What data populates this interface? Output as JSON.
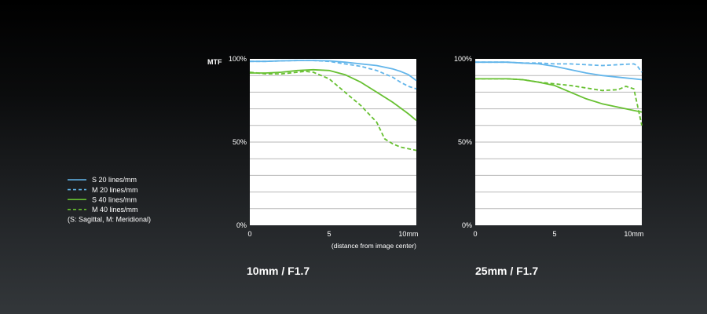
{
  "colors": {
    "sagittal_20": "#62b5ea",
    "meridional_20": "#62b5ea",
    "sagittal_40": "#67c031",
    "meridional_40": "#67c031",
    "plot_background": "#ffffff",
    "gridline": "#b7b7b7"
  },
  "legend": {
    "items": [
      {
        "label": "S 20 lines/mm",
        "style": "solid",
        "color": "#62b5ea"
      },
      {
        "label": "M 20 lines/mm",
        "style": "dashed",
        "color": "#62b5ea"
      },
      {
        "label": "S 40 lines/mm",
        "style": "solid",
        "color": "#67c031"
      },
      {
        "label": "M 40 lines/mm",
        "style": "dashed",
        "color": "#67c031"
      }
    ],
    "note": "(S: Sagittal, M: Meridional)",
    "placement": "left"
  },
  "chart_data": [
    {
      "type": "line",
      "ylabel": "MTF",
      "xlabel": "(distance from image center)",
      "caption": "10mm / F1.7",
      "ylim": [
        0,
        100
      ],
      "xlim": [
        0,
        10.5
      ],
      "y_ticks": [
        {
          "value": 0,
          "label": "0%"
        },
        {
          "value": 50,
          "label": "50%"
        },
        {
          "value": 100,
          "label": "100%"
        }
      ],
      "x_ticks": [
        {
          "value": 0,
          "label": "0"
        },
        {
          "value": 5,
          "label": "5"
        },
        {
          "value": 10,
          "label": "10mm"
        }
      ],
      "grid": true,
      "gridline_step": 10,
      "series": [
        {
          "name": "S 20 lines/mm",
          "style": "solid",
          "color": "#62b5ea",
          "x": [
            0,
            1,
            2,
            3,
            4,
            5,
            6,
            7,
            8,
            9,
            9.5,
            10,
            10.5
          ],
          "y": [
            98.5,
            98.5,
            98.8,
            99,
            99,
            98.8,
            98,
            97,
            96,
            94,
            92.5,
            90.5,
            87
          ]
        },
        {
          "name": "M 20 lines/mm",
          "style": "dashed",
          "color": "#62b5ea",
          "x": [
            0,
            1,
            2,
            3,
            4,
            5,
            6,
            7,
            8,
            9,
            9.5,
            10,
            10.5
          ],
          "y": [
            98.5,
            98.5,
            98.8,
            99,
            99,
            98.5,
            97,
            95.5,
            93,
            89,
            86,
            83.5,
            82
          ]
        },
        {
          "name": "S 40 lines/mm",
          "style": "solid",
          "color": "#67c031",
          "x": [
            0,
            1,
            2,
            3,
            4,
            5,
            6,
            7,
            8,
            9,
            9.5,
            10,
            10.5
          ],
          "y": [
            91.5,
            91.5,
            92,
            93,
            93.5,
            93,
            90.5,
            86,
            80,
            74,
            70.5,
            67,
            63
          ]
        },
        {
          "name": "M 40 lines/mm",
          "style": "dashed",
          "color": "#67c031",
          "x": [
            0,
            1,
            2,
            3,
            3.5,
            4,
            5,
            6,
            7,
            8,
            8.5,
            9,
            9.5,
            10,
            10.5
          ],
          "y": [
            92,
            91,
            91,
            92,
            92.5,
            92,
            88,
            80,
            72,
            62,
            52,
            49,
            47,
            46,
            45
          ]
        }
      ]
    },
    {
      "type": "line",
      "ylabel": "",
      "xlabel": "",
      "caption": "25mm / F1.7",
      "ylim": [
        0,
        100
      ],
      "xlim": [
        0,
        10.5
      ],
      "y_ticks": [
        {
          "value": 0,
          "label": "0%"
        },
        {
          "value": 50,
          "label": "50%"
        },
        {
          "value": 100,
          "label": "100%"
        }
      ],
      "x_ticks": [
        {
          "value": 0,
          "label": "0"
        },
        {
          "value": 5,
          "label": "5"
        },
        {
          "value": 10,
          "label": "10mm"
        }
      ],
      "grid": true,
      "gridline_step": 10,
      "series": [
        {
          "name": "S 20 lines/mm",
          "style": "solid",
          "color": "#62b5ea",
          "x": [
            0,
            1,
            2,
            3,
            4,
            5,
            6,
            7,
            8,
            9,
            10,
            10.5
          ],
          "y": [
            98,
            98,
            98,
            97.5,
            97,
            95.5,
            93.5,
            91.5,
            90,
            89,
            88,
            87.5
          ]
        },
        {
          "name": "M 20 lines/mm",
          "style": "dashed",
          "color": "#62b5ea",
          "x": [
            0,
            1,
            2,
            3,
            4,
            5,
            6,
            7,
            8,
            9,
            10,
            10.2,
            10.5
          ],
          "y": [
            98,
            98,
            98,
            97.5,
            97.5,
            97,
            97,
            96.5,
            96,
            96.5,
            97,
            96,
            92
          ]
        },
        {
          "name": "S 40 lines/mm",
          "style": "solid",
          "color": "#67c031",
          "x": [
            0,
            1,
            2,
            3,
            4,
            5,
            6,
            7,
            8,
            9,
            10,
            10.5
          ],
          "y": [
            88,
            88,
            88,
            87.5,
            86,
            84,
            80,
            76,
            73,
            71,
            69,
            68
          ]
        },
        {
          "name": "M 40 lines/mm",
          "style": "dashed",
          "color": "#67c031",
          "x": [
            0,
            1,
            2,
            3,
            4,
            5,
            6,
            7,
            8,
            9,
            9.5,
            10,
            10.5
          ],
          "y": [
            88,
            88,
            88,
            87.5,
            86,
            85,
            84,
            82.5,
            81,
            81.5,
            83.5,
            82,
            60
          ]
        }
      ]
    }
  ]
}
